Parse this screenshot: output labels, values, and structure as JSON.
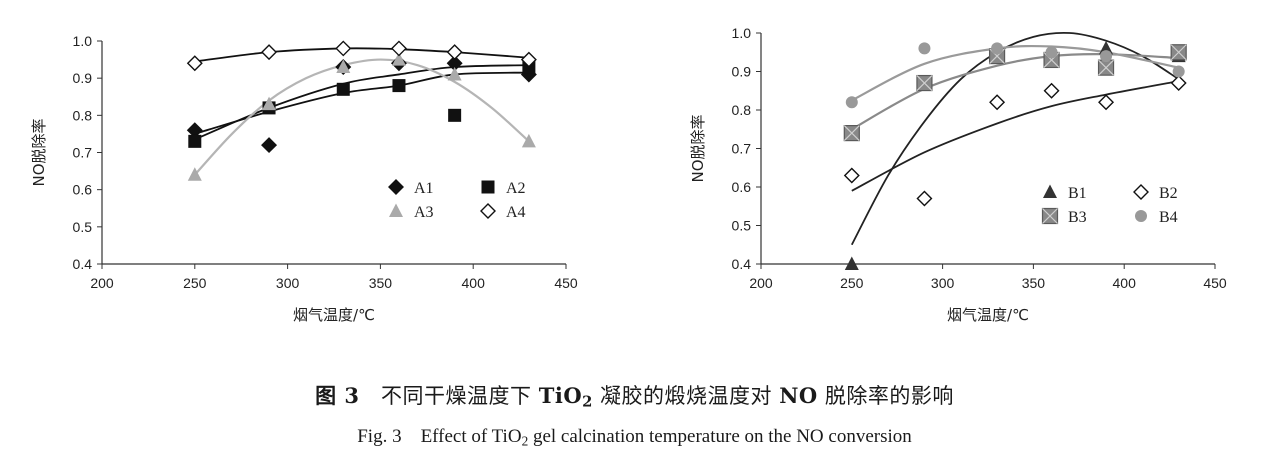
{
  "chart_data": [
    {
      "type": "scatter",
      "title": "",
      "xlabel": "烟气温度/℃",
      "ylabel": "NO脱除率",
      "xlim": [
        200,
        450
      ],
      "ylim": [
        0.4,
        1.0
      ],
      "xticks": [
        "200",
        "250",
        "300",
        "350",
        "400",
        "450"
      ],
      "yticks": [
        "0.4",
        "0.5",
        "0.6",
        "0.7",
        "0.8",
        "0.9",
        "1.0"
      ],
      "legend_position": "bottom-right",
      "series": [
        {
          "name": "A1",
          "marker": "diamond-filled",
          "color": "#111111",
          "x": [
            250,
            290,
            330,
            360,
            390,
            430
          ],
          "y": [
            0.76,
            0.72,
            0.93,
            0.94,
            0.94,
            0.91
          ],
          "trend": {
            "x": [
              250,
              290,
              330,
              360,
              390,
              430
            ],
            "y": [
              0.75,
              0.81,
              0.86,
              0.88,
              0.91,
              0.915
            ]
          }
        },
        {
          "name": "A2",
          "marker": "square-filled",
          "color": "#111111",
          "x": [
            250,
            290,
            330,
            360,
            390,
            430
          ],
          "y": [
            0.73,
            0.82,
            0.87,
            0.88,
            0.8,
            0.93
          ],
          "trend": {
            "x": [
              250,
              290,
              330,
              360,
              390,
              430
            ],
            "y": [
              0.735,
              0.82,
              0.885,
              0.91,
              0.93,
              0.935
            ]
          }
        },
        {
          "name": "A3",
          "marker": "triangle-filled",
          "color": "#aaaaaa",
          "x": [
            250,
            290,
            330,
            360,
            390,
            430
          ],
          "y": [
            0.64,
            0.83,
            0.93,
            0.95,
            0.91,
            0.73
          ],
          "trend": {
            "x": [
              250,
              270,
              290,
              310,
              330,
              350,
              370,
              390,
              410,
              430
            ],
            "y": [
              0.64,
              0.75,
              0.84,
              0.9,
              0.935,
              0.95,
              0.935,
              0.89,
              0.82,
              0.73
            ]
          }
        },
        {
          "name": "A4",
          "marker": "diamond-open",
          "color": "#111111",
          "x": [
            250,
            290,
            330,
            360,
            390,
            430
          ],
          "y": [
            0.94,
            0.97,
            0.98,
            0.98,
            0.97,
            0.95
          ],
          "trend": {
            "x": [
              250,
              290,
              330,
              360,
              390,
              430
            ],
            "y": [
              0.945,
              0.97,
              0.98,
              0.978,
              0.97,
              0.955
            ]
          }
        }
      ]
    },
    {
      "type": "scatter",
      "title": "",
      "xlabel": "烟气温度/℃",
      "ylabel": "NO脱除率",
      "xlim": [
        200,
        450
      ],
      "ylim": [
        0.4,
        1.0
      ],
      "xticks": [
        "200",
        "250",
        "300",
        "350",
        "400",
        "450"
      ],
      "yticks": [
        "0.4",
        "0.5",
        "0.6",
        "0.7",
        "0.8",
        "0.9",
        "1.0"
      ],
      "legend_position": "bottom-right",
      "series": [
        {
          "name": "B1",
          "marker": "triangle-filled",
          "color": "#333333",
          "x": [
            250,
            290,
            330,
            360,
            390,
            430
          ],
          "y": [
            0.4,
            0.87,
            0.94,
            0.94,
            0.96,
            0.94
          ],
          "trend": {
            "x": [
              250,
              270,
              290,
              310,
              330,
              350,
              370,
              390,
              410,
              430
            ],
            "y": [
              0.45,
              0.63,
              0.77,
              0.88,
              0.95,
              0.99,
              1.0,
              0.98,
              0.94,
              0.88
            ]
          }
        },
        {
          "name": "B2",
          "marker": "diamond-open",
          "color": "#111111",
          "x": [
            250,
            290,
            330,
            360,
            390,
            430
          ],
          "y": [
            0.63,
            0.57,
            0.82,
            0.85,
            0.82,
            0.87
          ],
          "trend": {
            "x": [
              250,
              290,
              330,
              360,
              390,
              430
            ],
            "y": [
              0.59,
              0.69,
              0.765,
              0.81,
              0.84,
              0.875
            ]
          }
        },
        {
          "name": "B3",
          "marker": "square-cross",
          "color": "#888888",
          "x": [
            250,
            290,
            330,
            360,
            390,
            430
          ],
          "y": [
            0.74,
            0.87,
            0.94,
            0.93,
            0.91,
            0.95
          ],
          "trend": {
            "x": [
              250,
              290,
              330,
              360,
              390,
              430
            ],
            "y": [
              0.75,
              0.855,
              0.915,
              0.94,
              0.945,
              0.935
            ]
          }
        },
        {
          "name": "B4",
          "marker": "circle-filled",
          "color": "#999999",
          "x": [
            250,
            290,
            330,
            360,
            390,
            430
          ],
          "y": [
            0.82,
            0.96,
            0.96,
            0.95,
            0.94,
            0.9
          ],
          "trend": {
            "x": [
              250,
              290,
              330,
              360,
              390,
              430
            ],
            "y": [
              0.825,
              0.92,
              0.96,
              0.965,
              0.95,
              0.91
            ]
          }
        }
      ]
    }
  ],
  "caption": {
    "cn": {
      "figure_label": "图 3",
      "text_a": "不同干燥温度下",
      "chem_main": "TiO",
      "chem_sub": "2",
      "text_b": "凝胶的煅烧温度对",
      "no_label": "NO",
      "text_c": "脱除率的影响"
    },
    "en": {
      "figure_label": "Fig. 3",
      "text_a": "Effect of TiO",
      "chem_sub": "2",
      "text_b": "gel calcination temperature on the NO conversion"
    }
  }
}
